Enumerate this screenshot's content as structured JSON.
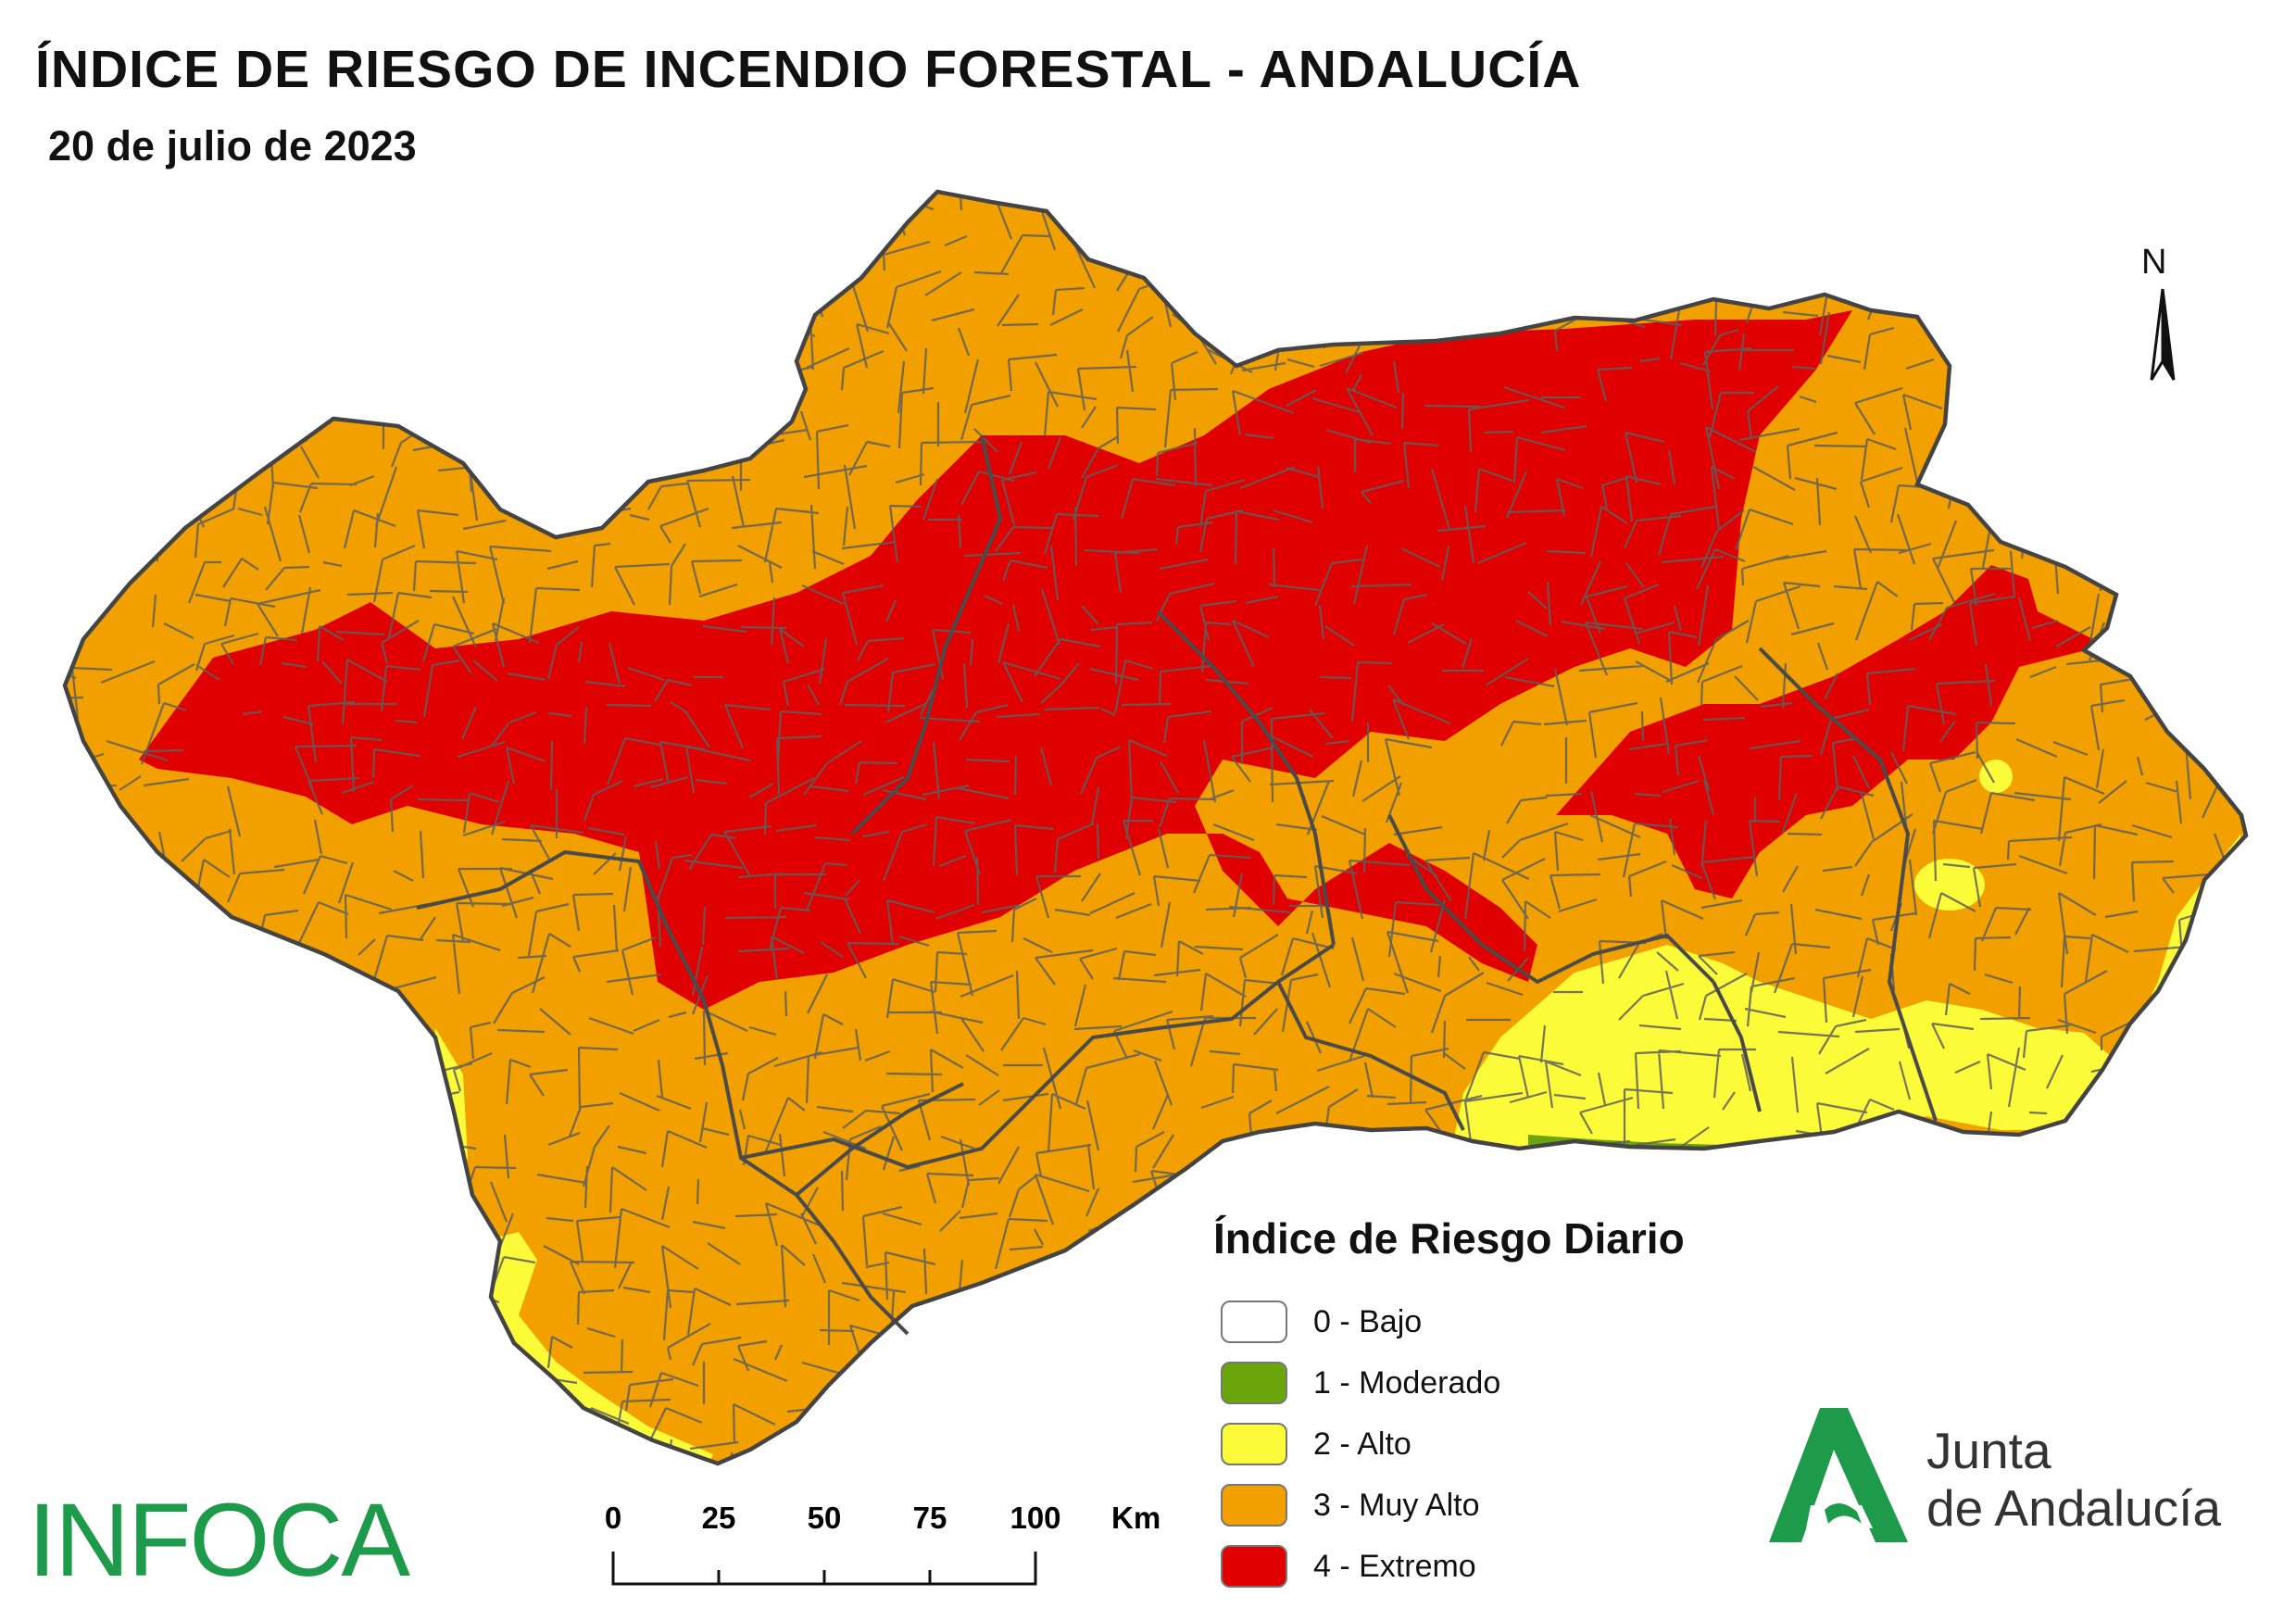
{
  "title": "ÍNDICE DE RIESGO DE INCENDIO FORESTAL - ANDALUCÍA",
  "subtitle": "20 de julio de 2023",
  "north_label": "N",
  "legend": {
    "title": "Índice de Riesgo Diario",
    "items": [
      {
        "label": "0 - Bajo",
        "color": "#ffffff"
      },
      {
        "label": "1 - Moderado",
        "color": "#6aa50c"
      },
      {
        "label": "2 - Alto",
        "color": "#fbfb3a"
      },
      {
        "label": "3 - Muy Alto",
        "color": "#f2a000"
      },
      {
        "label": "4 - Extremo",
        "color": "#e00000"
      }
    ]
  },
  "scale_bar": {
    "ticks": [
      "0",
      "25",
      "50",
      "75",
      "100"
    ],
    "unit": "Km"
  },
  "infoca_logo": "INFOCA",
  "junta_logo": {
    "line1": "Junta",
    "line2": "de Andalucía",
    "color": "#1d9a4a"
  },
  "colors": {
    "muy_alto": "#f2a000",
    "extremo": "#e00000",
    "alto": "#fbfb3a",
    "moderado": "#6aa50c",
    "border": "#5e5e5e"
  }
}
